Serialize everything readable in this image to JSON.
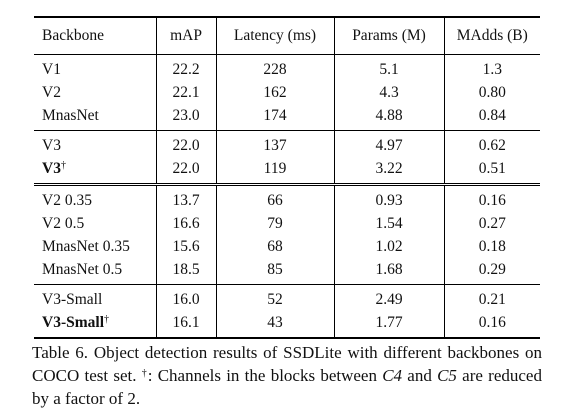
{
  "table": {
    "headers": [
      "Backbone",
      "mAP",
      "Latency (ms)",
      "Params (M)",
      "MAdds (B)"
    ],
    "groups": [
      [
        {
          "name": "V1",
          "mark": "",
          "bold": false,
          "cells": [
            "22.2",
            "228",
            "5.1",
            "1.3"
          ]
        },
        {
          "name": "V2",
          "mark": "",
          "bold": false,
          "cells": [
            "22.1",
            "162",
            "4.3",
            "0.80"
          ]
        },
        {
          "name": "MnasNet",
          "mark": "",
          "bold": false,
          "cells": [
            "23.0",
            "174",
            "4.88",
            "0.84"
          ]
        }
      ],
      [
        {
          "name": "V3",
          "mark": "",
          "bold": false,
          "cells": [
            "22.0",
            "137",
            "4.97",
            "0.62"
          ]
        },
        {
          "name": "V3",
          "mark": "†",
          "bold": true,
          "cells": [
            "22.0",
            "119",
            "3.22",
            "0.51"
          ]
        }
      ],
      [
        {
          "name": "V2 0.35",
          "mark": "",
          "bold": false,
          "cells": [
            "13.7",
            "66",
            "0.93",
            "0.16"
          ]
        },
        {
          "name": "V2 0.5",
          "mark": "",
          "bold": false,
          "cells": [
            "16.6",
            "79",
            "1.54",
            "0.27"
          ]
        },
        {
          "name": "MnasNet 0.35",
          "mark": "",
          "bold": false,
          "cells": [
            "15.6",
            "68",
            "1.02",
            "0.18"
          ]
        },
        {
          "name": "MnasNet 0.5",
          "mark": "",
          "bold": false,
          "cells": [
            "18.5",
            "85",
            "1.68",
            "0.29"
          ]
        }
      ],
      [
        {
          "name": "V3-Small",
          "mark": "",
          "bold": false,
          "cells": [
            "16.0",
            "52",
            "2.49",
            "0.21"
          ]
        },
        {
          "name": "V3-Small",
          "mark": "†",
          "bold": true,
          "cells": [
            "16.1",
            "43",
            "1.77",
            "0.16"
          ]
        }
      ]
    ]
  },
  "caption": {
    "part1": "Table 6. Object detection results of SSDLite with different backbones on COCO test set. ",
    "dagger": "†",
    "part2": ": Channels in the blocks between ",
    "c4": "C4",
    "part3": " and ",
    "c5": "C5",
    "part4": " are reduced by a factor of 2."
  }
}
